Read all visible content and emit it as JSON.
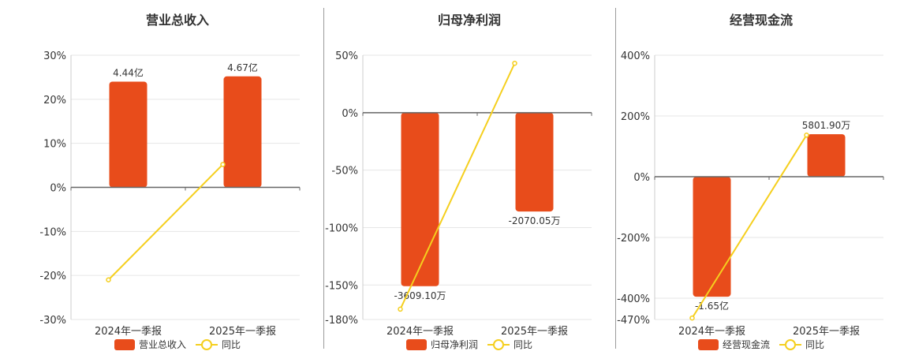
{
  "colors": {
    "bar": "#e84c1b",
    "line": "#f5cf1e",
    "grid": "#e6e6e6",
    "axis": "#666666",
    "text": "#333333"
  },
  "chart_data": [
    {
      "type": "bar",
      "title": "营业总收入",
      "categories": [
        "2024年一季报",
        "2025年一季报"
      ],
      "series": [
        {
          "name": "营业总收入",
          "values": [
            24,
            25.2
          ],
          "labels": [
            "4.44亿",
            "4.67亿"
          ]
        },
        {
          "name": "同比",
          "type": "line",
          "values": [
            -21,
            5.2
          ]
        }
      ],
      "ylim": [
        -30,
        30
      ],
      "yticks": [
        30,
        20,
        10,
        0,
        -10,
        -20,
        -30
      ],
      "ytick_labels": [
        "30%",
        "20%",
        "10%",
        "0%",
        "-10%",
        "-20%",
        "-30%"
      ],
      "legend": "bottom"
    },
    {
      "type": "bar",
      "title": "归母净利润",
      "categories": [
        "2024年一季报",
        "2025年一季报"
      ],
      "series": [
        {
          "name": "归母净利润",
          "values": [
            -151,
            -86
          ],
          "labels": [
            "-3609.10万",
            "-2070.05万"
          ]
        },
        {
          "name": "同比",
          "type": "line",
          "values": [
            -171,
            43
          ]
        }
      ],
      "ylim": [
        -180,
        50
      ],
      "yticks": [
        50,
        0,
        -50,
        -100,
        -150,
        -180
      ],
      "ytick_labels": [
        "50%",
        "0%",
        "-50%",
        "-100%",
        "-150%",
        "-180%"
      ],
      "legend": "bottom"
    },
    {
      "type": "bar",
      "title": "经营现金流",
      "categories": [
        "2024年一季报",
        "2025年一季报"
      ],
      "series": [
        {
          "name": "经营现金流",
          "values": [
            -395,
            140
          ],
          "labels": [
            "-1.65亿",
            "5801.90万"
          ]
        },
        {
          "name": "同比",
          "type": "line",
          "values": [
            -465,
            137
          ]
        }
      ],
      "ylim": [
        -470,
        400
      ],
      "yticks": [
        400,
        200,
        0,
        -200,
        -400,
        -470
      ],
      "ytick_labels": [
        "400%",
        "200%",
        "0%",
        "-200%",
        "-400%",
        "-470%"
      ],
      "legend": "bottom"
    }
  ]
}
